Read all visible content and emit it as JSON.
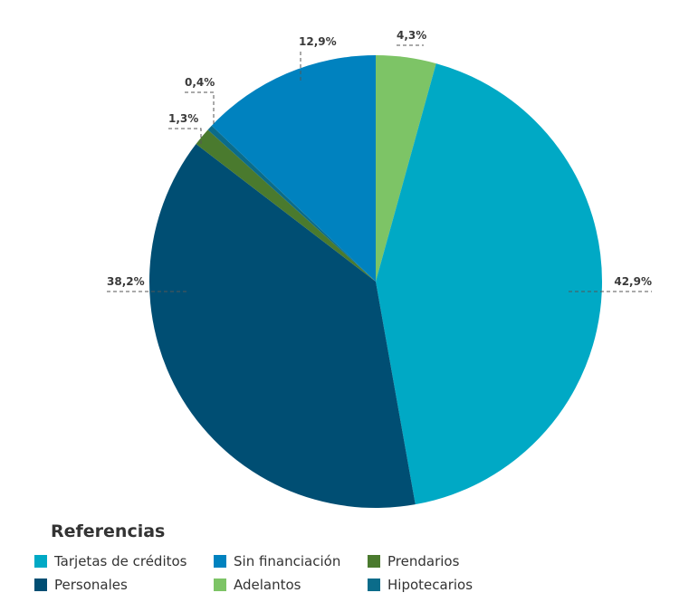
{
  "chart_data": {
    "type": "pie",
    "title": "",
    "slices": [
      {
        "label": "Tarjetas de créditos",
        "value": 42.9,
        "display": "42,9%",
        "color": "#00A9C5"
      },
      {
        "label": "Personales",
        "value": 38.2,
        "display": "38,2%",
        "color": "#004E73"
      },
      {
        "label": "Prendarios",
        "value": 1.3,
        "display": "1,3%",
        "color": "#4A7A2E"
      },
      {
        "label": "Hipotecarios",
        "value": 0.4,
        "display": "0,4%",
        "color": "#0B6C8A"
      },
      {
        "label": "Sin financiación",
        "value": 12.9,
        "display": "12,9%",
        "color": "#0082BF"
      },
      {
        "label": "Adelantos",
        "value": 4.3,
        "display": "4,3%",
        "color": "#7DC466"
      }
    ],
    "legend": {
      "title": "Referencias",
      "placement": "bottom-left",
      "items": [
        {
          "label": "Tarjetas de créditos",
          "color": "#00A9C5"
        },
        {
          "label": "Sin financiación",
          "color": "#0082BF"
        },
        {
          "label": "Prendarios",
          "color": "#4A7A2E"
        },
        {
          "label": "Personales",
          "color": "#004E73"
        },
        {
          "label": "Adelantos",
          "color": "#7DC466"
        },
        {
          "label": "Hipotecarios",
          "color": "#0B6C8A"
        }
      ]
    }
  }
}
